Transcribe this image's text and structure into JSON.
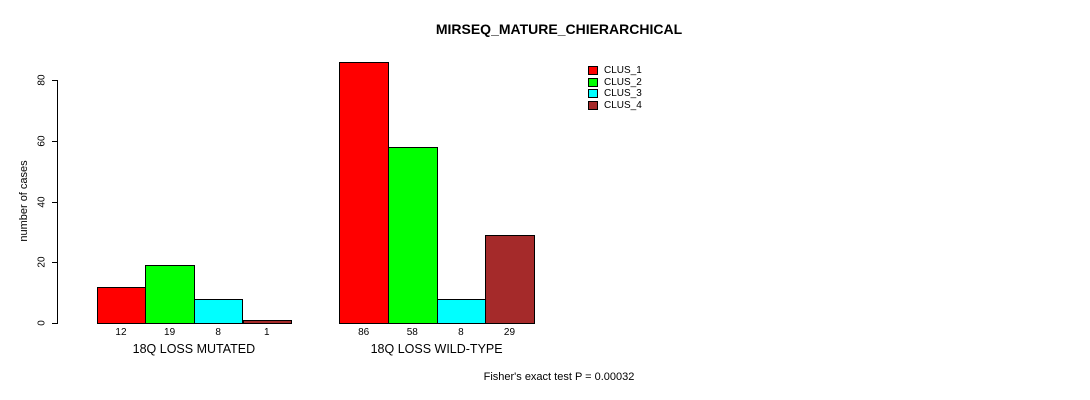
{
  "title": "MIRSEQ_MATURE_CHIERARCHICAL",
  "footer": "Fisher's exact test P = 0.00032",
  "chart_data": {
    "type": "bar",
    "title": "MIRSEQ_MATURE_CHIERARCHICAL",
    "ylabel": "number of cases",
    "xlabel": "",
    "ylim": [
      0,
      86
    ],
    "yticks": [
      0,
      20,
      40,
      60,
      80
    ],
    "grid": false,
    "bar_value_labels_shown": true,
    "legend_position": "top-right",
    "categories": [
      "18Q LOSS MUTATED",
      "18Q LOSS WILD-TYPE"
    ],
    "series": [
      {
        "name": "CLUS_1",
        "color": "#ff0000",
        "values": [
          12,
          86
        ]
      },
      {
        "name": "CLUS_2",
        "color": "#00ff00",
        "values": [
          19,
          58
        ]
      },
      {
        "name": "CLUS_3",
        "color": "#00ffff",
        "values": [
          8,
          8
        ]
      },
      {
        "name": "CLUS_4",
        "color": "#a52a2a",
        "values": [
          1,
          29
        ]
      }
    ],
    "annotation": "Fisher's exact test P = 0.00032"
  }
}
